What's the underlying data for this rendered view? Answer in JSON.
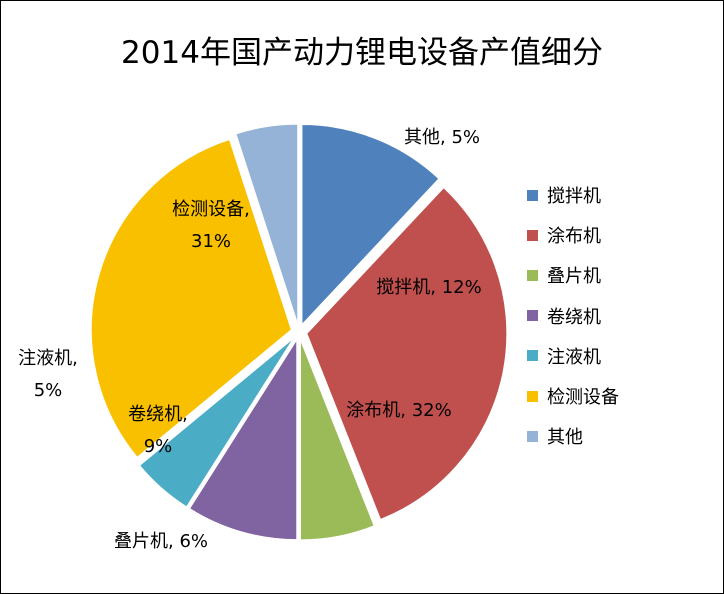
{
  "chart_data": {
    "type": "pie",
    "title": "2014年国产动力锂电设备产值细分",
    "categories": [
      "搅拌机",
      "涂布机",
      "叠片机",
      "卷绕机",
      "注液机",
      "检测设备",
      "其他"
    ],
    "values": [
      12,
      32,
      6,
      9,
      5,
      31,
      5
    ],
    "colors": [
      "#4F81BD",
      "#C0504D",
      "#9BBB59",
      "#8064A2",
      "#4BACC6",
      "#F9C000",
      "#95B3D7"
    ],
    "exploded": true,
    "legend": "right",
    "data_labels": [
      {
        "name": "搅拌机",
        "value": "12%"
      },
      {
        "name": "涂布机",
        "value": "32%"
      },
      {
        "name": "叠片机",
        "value": "6%"
      },
      {
        "name": "卷绕机",
        "value": "9%"
      },
      {
        "name": "注液机",
        "value": "5%"
      },
      {
        "name": "检测设备",
        "value": "31%"
      },
      {
        "name": "其他",
        "value": "5%"
      }
    ]
  }
}
